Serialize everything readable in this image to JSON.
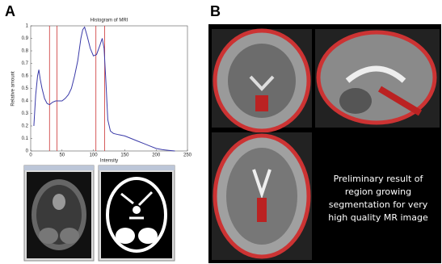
{
  "panels": {
    "a": "A",
    "b": "B"
  },
  "chart_data": {
    "type": "line",
    "title": "Histogram of MRI",
    "xlabel": "Intensity",
    "ylabel": "Relative amount",
    "x": [
      5,
      8,
      11,
      13,
      15,
      18,
      22,
      26,
      30,
      35,
      40,
      45,
      50,
      55,
      60,
      65,
      70,
      75,
      80,
      83,
      86,
      90,
      95,
      100,
      105,
      110,
      114,
      117,
      120,
      123,
      127,
      132,
      140,
      150,
      160,
      170,
      180,
      190,
      200,
      210,
      220,
      230
    ],
    "values": [
      0.2,
      0.45,
      0.6,
      0.65,
      0.58,
      0.5,
      0.42,
      0.38,
      0.37,
      0.39,
      0.4,
      0.4,
      0.4,
      0.42,
      0.45,
      0.5,
      0.6,
      0.72,
      0.9,
      0.97,
      0.99,
      0.92,
      0.82,
      0.76,
      0.77,
      0.84,
      0.9,
      0.82,
      0.55,
      0.25,
      0.16,
      0.14,
      0.13,
      0.12,
      0.1,
      0.08,
      0.06,
      0.04,
      0.02,
      0.01,
      0.005,
      0
    ],
    "color": "#3a3aa8",
    "vlines": [
      30,
      42,
      104,
      118
    ],
    "vline_color": "#cc3333",
    "xlim": [
      0,
      250
    ],
    "xticks": [
      0,
      50,
      100,
      150,
      200,
      250
    ],
    "ylim": [
      0,
      1
    ],
    "yticks": [
      0,
      0.1,
      0.2,
      0.3,
      0.4,
      0.5,
      0.6,
      0.7,
      0.8,
      0.9,
      1
    ]
  },
  "caption": [
    "Preliminary result of",
    "region growing",
    "segmentation for very",
    "high quality MR image"
  ]
}
